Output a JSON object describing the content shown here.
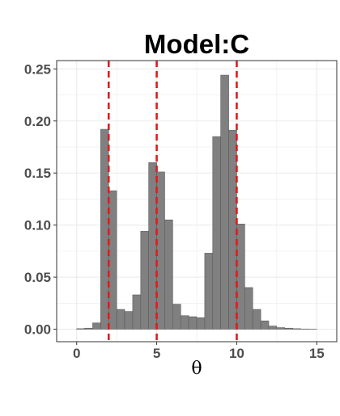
{
  "chart_data": {
    "type": "bar",
    "title": "Model:C",
    "xlabel": "θ",
    "ylabel": "",
    "xlim": [
      -1.25,
      16.25
    ],
    "ylim": [
      -0.012,
      0.258
    ],
    "x_ticks": [
      0,
      5,
      10,
      15
    ],
    "x_tick_labels": [
      "0",
      "5",
      "10",
      "15"
    ],
    "y_ticks": [
      0.0,
      0.05,
      0.1,
      0.15,
      0.2,
      0.25
    ],
    "y_tick_labels": [
      "0.00",
      "0.05",
      "0.10",
      "0.15",
      "0.20",
      "0.25"
    ],
    "grid": true,
    "bin_width": 0.5,
    "bin_left_edges": [
      0.0,
      0.5,
      1.0,
      1.5,
      2.0,
      2.5,
      3.0,
      3.5,
      4.0,
      4.5,
      5.0,
      5.5,
      6.0,
      6.5,
      7.0,
      7.5,
      8.0,
      8.5,
      9.0,
      9.5,
      10.0,
      10.5,
      11.0,
      11.5,
      12.0,
      12.5,
      13.0,
      13.5,
      14.0,
      14.5
    ],
    "values": [
      0.0005,
      0.001,
      0.006,
      0.192,
      0.133,
      0.019,
      0.017,
      0.033,
      0.094,
      0.16,
      0.151,
      0.105,
      0.024,
      0.013,
      0.012,
      0.011,
      0.073,
      0.185,
      0.244,
      0.191,
      0.101,
      0.04,
      0.019,
      0.008,
      0.003,
      0.0015,
      0.001,
      0.0005,
      0.0002,
      0.0001
    ],
    "reference_lines": [
      2,
      5,
      10
    ],
    "colors": {
      "bar_fill": "#808080",
      "bar_stroke": "#5a5a5a",
      "reference_line": "#e31a1c",
      "grid": "#ebebeb",
      "panel_border": "#333333"
    }
  }
}
